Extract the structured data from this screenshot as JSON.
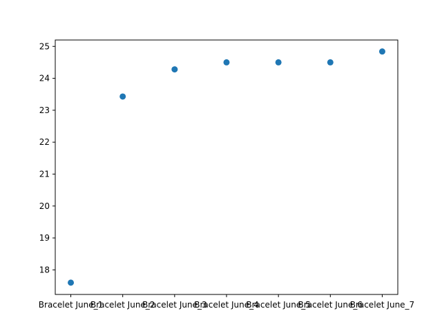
{
  "chart_data": {
    "type": "scatter",
    "title": "",
    "xlabel": "",
    "ylabel": "",
    "categories": [
      "Bracelet June_1",
      "Bracelet June_2",
      "Bracelet June_3",
      "Bracelet June_4",
      "Bracelet June_5",
      "Bracelet June_6",
      "Bracelet June_7"
    ],
    "values": [
      17.6,
      23.43,
      24.28,
      24.5,
      24.5,
      24.5,
      24.84
    ],
    "ylim": [
      17.23,
      25.2
    ],
    "yticks": [
      18,
      19,
      20,
      21,
      22,
      23,
      24,
      25
    ],
    "grid": false,
    "legend": "none",
    "marker_color": "#1f77b4"
  }
}
